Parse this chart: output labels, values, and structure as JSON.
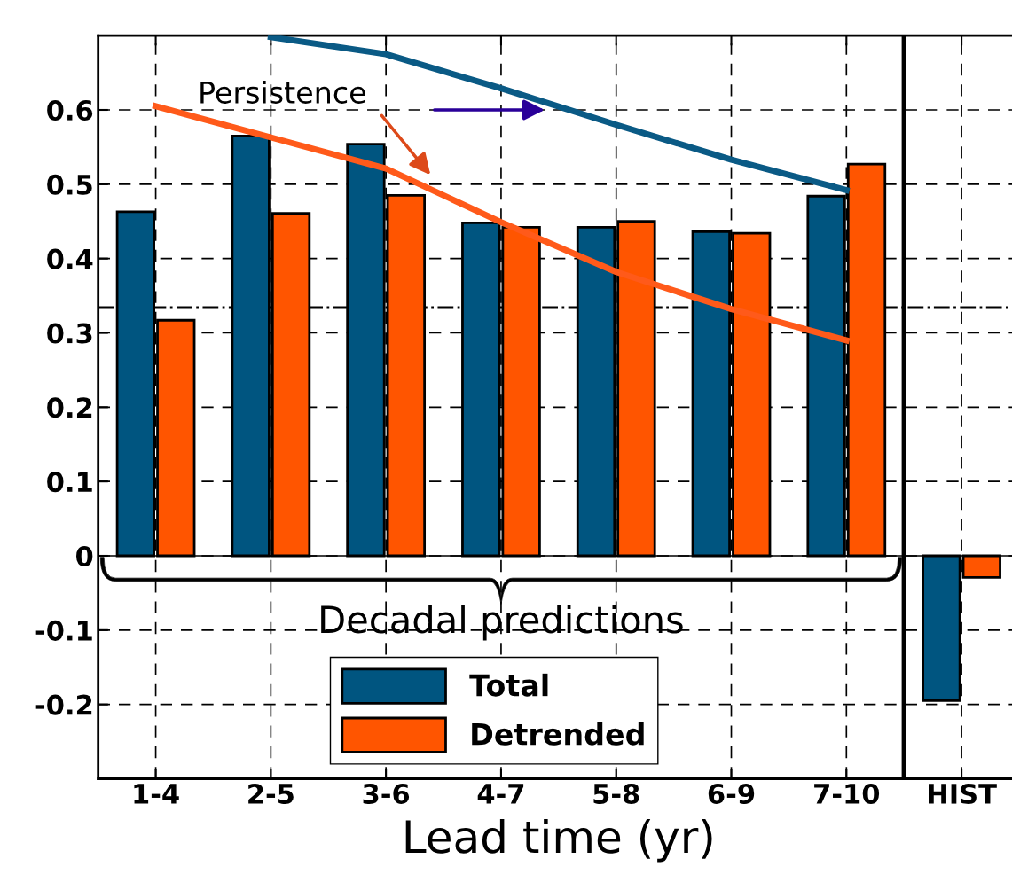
{
  "chart_data": {
    "type": "bar",
    "xlabel": "Lead time (yr)",
    "categories": [
      "1-4",
      "2-5",
      "3-6",
      "4-7",
      "5-8",
      "6-9",
      "7-10",
      "HIST"
    ],
    "series": [
      {
        "name": "Total",
        "color": "#005580",
        "values": [
          0.463,
          0.565,
          0.554,
          0.448,
          0.442,
          0.436,
          0.484,
          -0.195
        ]
      },
      {
        "name": "Detrended",
        "color": "#ff5500",
        "values": [
          0.317,
          0.461,
          0.485,
          0.442,
          0.45,
          0.434,
          0.527,
          -0.029
        ]
      },
      {
        "type": "line",
        "color": "#0a5a85",
        "values": [
          null,
          0.698,
          0.675,
          0.629,
          0.58,
          0.533,
          0.492,
          null
        ]
      },
      {
        "type": "line",
        "color": "#ff5a1a",
        "values": [
          0.605,
          0.563,
          0.521,
          0.449,
          0.382,
          0.332,
          0.29,
          null
        ]
      }
    ],
    "ylim": [
      -0.3,
      0.7
    ],
    "yticks": [
      -0.2,
      -0.1,
      0,
      0.1,
      0.2,
      0.3,
      0.4,
      0.5,
      0.6
    ],
    "ref_lines": [
      {
        "axis": "y",
        "value": 0.334,
        "line_style": "dashdot",
        "color": "#000000"
      }
    ],
    "annotations": [
      "Persistence",
      "Decadal predictions"
    ],
    "grid": true,
    "legend": "bottom"
  }
}
